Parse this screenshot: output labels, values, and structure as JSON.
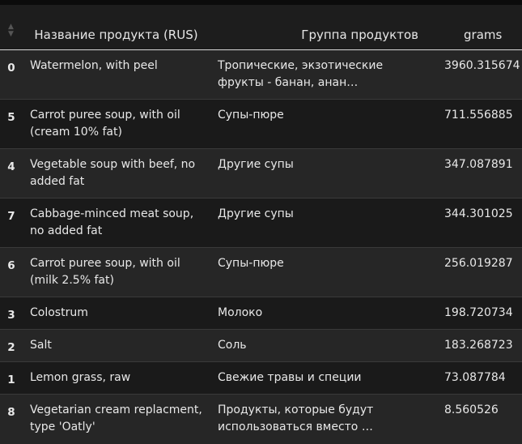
{
  "table": {
    "headers": [
      "Название продукта (RUS)",
      "Группа продуктов",
      "grams"
    ],
    "rows": [
      {
        "index": "0",
        "name": "Watermelon, with peel",
        "group": "Тропические, экзотические фрукты - банан, анан…",
        "grams": "3960.315674"
      },
      {
        "index": "5",
        "name": "Carrot puree soup, with oil (cream 10% fat)",
        "group": "Супы-пюре",
        "grams": "711.556885"
      },
      {
        "index": "4",
        "name": "Vegetable soup with beef, no added fat",
        "group": "Другие супы",
        "grams": "347.087891"
      },
      {
        "index": "7",
        "name": "Cabbage-minced meat soup, no added fat",
        "group": "Другие супы",
        "grams": "344.301025"
      },
      {
        "index": "6",
        "name": "Carrot puree soup, with oil (milk 2.5% fat)",
        "group": "Супы-пюре",
        "grams": "256.019287"
      },
      {
        "index": "3",
        "name": "Colostrum",
        "group": "Молоко",
        "grams": "198.720734"
      },
      {
        "index": "2",
        "name": "Salt",
        "group": "Соль",
        "grams": "183.268723"
      },
      {
        "index": "1",
        "name": "Lemon grass, raw",
        "group": "Свежие травы и специи",
        "grams": "73.087784"
      },
      {
        "index": "8",
        "name": "Vegetarian cream replacment, type 'Oatly'",
        "group": "Продукты, которые будут использоваться вместо …",
        "grams": "8.560526"
      }
    ]
  },
  "icons": {
    "sort": "sort-icon"
  }
}
